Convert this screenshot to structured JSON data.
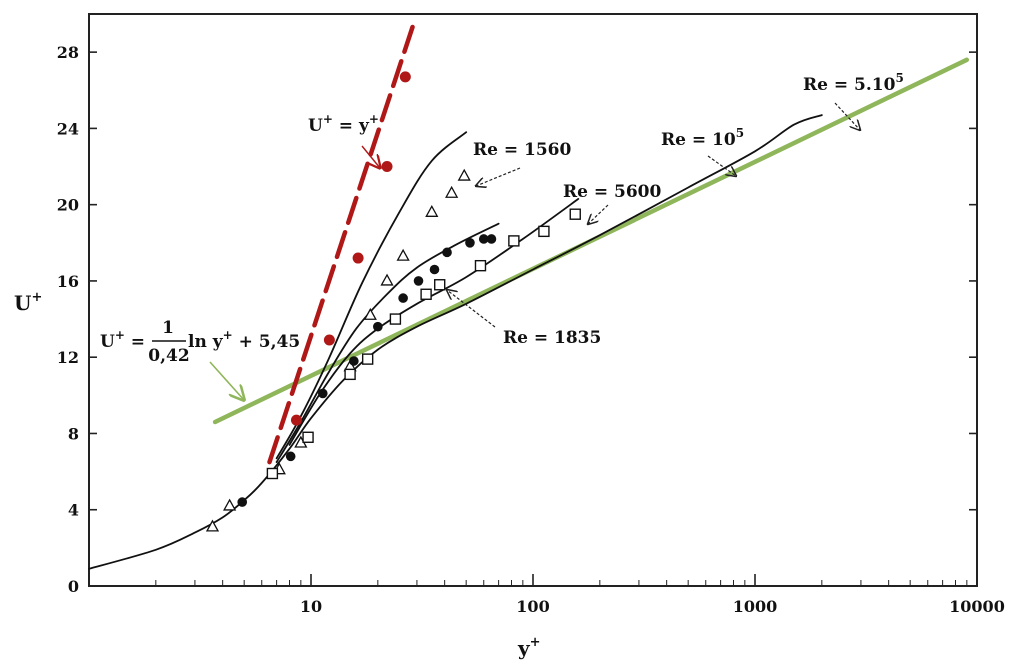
{
  "chart_data": {
    "type": "line",
    "x_scale": "log",
    "xlim": [
      1,
      10000
    ],
    "ylim": [
      0,
      30
    ],
    "xlabel": "y",
    "xlabel_sup": "+",
    "ylabel": "U",
    "ylabel_sup": "+",
    "x_ticks": [
      {
        "value": 10,
        "label": "10"
      },
      {
        "value": 100,
        "label": "100"
      },
      {
        "value": 1000,
        "label": "1000"
      },
      {
        "value": 10000,
        "label": "10000"
      }
    ],
    "y_ticks": [
      {
        "value": 0,
        "label": "0"
      },
      {
        "value": 4,
        "label": "4"
      },
      {
        "value": 8,
        "label": "8"
      },
      {
        "value": 12,
        "label": "12"
      },
      {
        "value": 16,
        "label": "16"
      },
      {
        "value": 20,
        "label": "20"
      },
      {
        "value": 24,
        "label": "24"
      },
      {
        "value": 28,
        "label": "28"
      }
    ],
    "grid": false,
    "colors": {
      "log_law": "#8fb65a",
      "linear_law": "#b01818",
      "experiment": "#111111"
    },
    "series": [
      {
        "key": "log_law",
        "style": "solid",
        "x": [
          3.7,
          9000
        ],
        "y": [
          8.6,
          27.6
        ]
      },
      {
        "key": "linear_law",
        "style": "dash-dot",
        "x": [
          6.5,
          29
        ],
        "y": [
          6.5,
          29.5
        ],
        "markers": {
          "x": [
            8.6,
            12.1,
            16.3,
            22,
            26.6
          ],
          "y": [
            8.7,
            12.9,
            17.2,
            22,
            26.7
          ]
        }
      },
      {
        "key": "curve_1560",
        "style": "solid",
        "x": [
          7,
          9,
          12,
          17,
          25,
          35,
          50
        ],
        "y": [
          6.7,
          8.9,
          11.9,
          15.9,
          19.6,
          22.3,
          23.8
        ]
      },
      {
        "key": "curve_1835",
        "style": "solid",
        "x": [
          7,
          9,
          12,
          16,
          22,
          30,
          45,
          70
        ],
        "y": [
          6.5,
          8.6,
          11.2,
          13.5,
          15.3,
          16.7,
          17.9,
          19
        ]
      },
      {
        "key": "curve_5600",
        "style": "solid",
        "x": [
          8,
          11,
          15,
          20,
          30,
          50,
          90,
          160
        ],
        "y": [
          7.4,
          10.1,
          12.2,
          13.5,
          14.8,
          16.2,
          18.2,
          20.3
        ]
      },
      {
        "key": "curve_1e5",
        "style": "solid",
        "x": [
          1,
          2,
          3,
          4,
          5,
          6,
          8,
          10,
          14,
          20,
          30,
          50,
          100,
          200,
          500,
          1000,
          1500,
          2000
        ],
        "y": [
          0.9,
          1.9,
          2.8,
          3.6,
          4.5,
          5.4,
          7.2,
          8.8,
          10.8,
          12.4,
          13.6,
          14.8,
          16.6,
          18.4,
          20.9,
          22.8,
          24.2,
          24.7
        ]
      },
      {
        "key": "tri_1560",
        "style": "markers",
        "marker": "triangle",
        "x": [
          3.6,
          4.3,
          7.2,
          9,
          15,
          18.5,
          22,
          26,
          35,
          43,
          49
        ],
        "y": [
          3.1,
          4.2,
          6.1,
          7.5,
          11.5,
          14.2,
          16,
          17.3,
          19.6,
          20.6,
          21.5
        ]
      },
      {
        "key": "dot_1835",
        "style": "markers",
        "marker": "filled-circle",
        "x": [
          4.9,
          8.1,
          11.3,
          15.6,
          20,
          26,
          30.5,
          36,
          41,
          52,
          60,
          65
        ],
        "y": [
          4.4,
          6.8,
          10.1,
          11.8,
          13.6,
          15.1,
          16,
          16.6,
          17.5,
          18,
          18.2,
          18.2
        ]
      },
      {
        "key": "sq_5600",
        "style": "markers",
        "marker": "open-square",
        "x": [
          6.7,
          9.7,
          15,
          18,
          24,
          33,
          38,
          58,
          82,
          112,
          155
        ],
        "y": [
          5.9,
          7.8,
          11.1,
          11.9,
          14,
          15.3,
          15.8,
          16.8,
          18.1,
          18.6,
          19.5
        ]
      }
    ],
    "annotations": [
      {
        "key": "lin",
        "text": "U",
        "sup": "+",
        "text2": " = y",
        "sup2": "+"
      },
      {
        "key": "re1560",
        "text": "Re = 1560"
      },
      {
        "key": "re5600",
        "text": "Re = 5600"
      },
      {
        "key": "re1e5",
        "text": "Re = 10",
        "sup": "5"
      },
      {
        "key": "re5e5",
        "text": "Re = 5.10",
        "sup": "5"
      },
      {
        "key": "re1835",
        "text": "Re = 1835"
      },
      {
        "key": "loglaw",
        "text": "U",
        "sup": "+",
        "text2": " = ",
        "frac_num": "1",
        "frac_den": "0,42",
        "text3": " ln y",
        "sup3": "+",
        "text4": " + 5,45"
      }
    ]
  }
}
